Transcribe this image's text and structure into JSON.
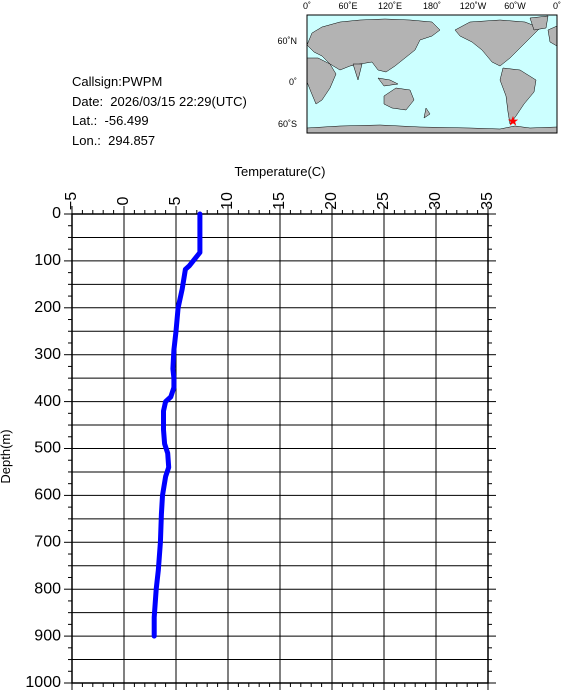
{
  "info": {
    "callsign": "Callsign:PWPM",
    "date": "Date:  2026/03/15 22:29(UTC)",
    "lat": "Lat.:  -56.499",
    "lon": "Lon.:  294.857"
  },
  "map": {
    "top_labels": [
      "0˚",
      "60˚E",
      "120˚E",
      "180˚",
      "120˚W",
      "60˚W",
      "0˚"
    ],
    "left_labels": [
      "60˚N",
      "0˚",
      "60˚S"
    ],
    "station_marker": "red-star",
    "ocean_color": "#ccffff",
    "land_color": "#b3b3b3",
    "marker_color": "#ff0000"
  },
  "chart_data": {
    "type": "line",
    "title": "",
    "xlabel": "Temperature(C)",
    "ylabel": "Depth(m)",
    "xlim": [
      -5,
      35
    ],
    "ylim": [
      0,
      1000
    ],
    "y_inverted": true,
    "x_axis_position": "top",
    "grid": true,
    "x_ticks": [
      -5,
      0,
      5,
      10,
      15,
      20,
      25,
      30,
      35
    ],
    "y_ticks": [
      0,
      100,
      200,
      300,
      400,
      500,
      600,
      700,
      800,
      900,
      1000
    ],
    "line_color": "#0000ff",
    "series": [
      {
        "x": [
          7.3,
          7.3,
          7.3,
          7.3,
          6.3,
          5.9,
          5.6,
          5.2,
          5.0,
          4.8,
          4.7,
          4.8,
          4.8,
          4.5,
          4.0,
          3.8,
          3.8,
          3.9,
          4.2,
          4.3,
          4.0,
          3.7,
          3.6,
          3.5,
          3.3,
          3.1,
          2.9,
          2.9
        ],
        "y": [
          0,
          40,
          80,
          82,
          110,
          118,
          160,
          200,
          250,
          290,
          330,
          350,
          370,
          390,
          400,
          420,
          460,
          490,
          510,
          540,
          560,
          600,
          640,
          700,
          760,
          800,
          860,
          900
        ]
      }
    ]
  }
}
